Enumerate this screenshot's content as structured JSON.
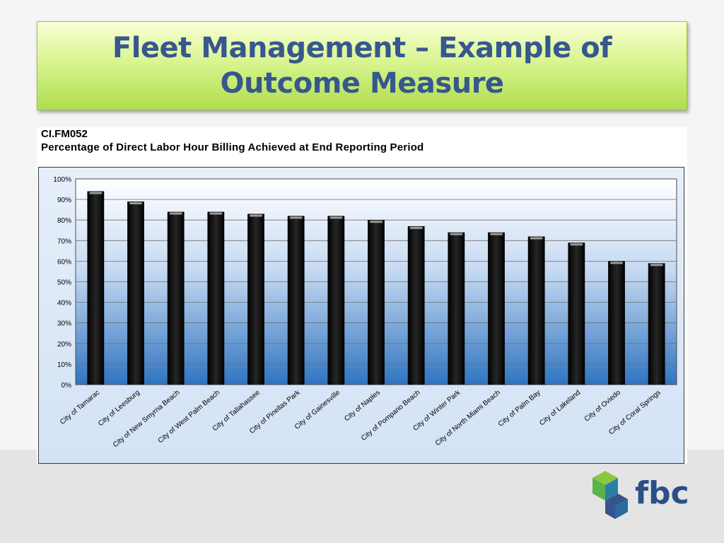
{
  "slide": {
    "title": "Fleet Management – Example of Outcome Measure"
  },
  "chart_header": {
    "code": "CI.FM052",
    "subtitle": "Percentage of Direct Labor Hour Billing Achieved at End Reporting Period"
  },
  "chart_data": {
    "type": "bar",
    "categories": [
      "City of Tamarac",
      "City of Leesburg",
      "City of New Smyrna Beach",
      "City of West Palm Beach",
      "City of Tallahassee",
      "City of Pinellas Park",
      "City of Gainesville",
      "City of Naples",
      "City of Pompano Beach",
      "City of Winter Park",
      "City of North Miami Beach",
      "City of Palm Bay",
      "City of Lakeland",
      "City of Oviedo",
      "City of Coral Springs"
    ],
    "values": [
      94,
      89,
      84,
      84,
      83,
      82,
      82,
      80,
      77,
      74,
      74,
      72,
      69,
      60,
      59
    ],
    "yticks": [
      "0%",
      "10%",
      "20%",
      "30%",
      "40%",
      "50%",
      "60%",
      "70%",
      "80%",
      "90%",
      "100%"
    ],
    "ylim": [
      0,
      100
    ],
    "grid": true,
    "bar_color": "#111111",
    "xlabel": "",
    "ylabel": ""
  },
  "logo": {
    "text": "fbc",
    "colors": [
      "#2a7fa6",
      "#5bb14a",
      "#33558c",
      "#8cc63f"
    ]
  }
}
